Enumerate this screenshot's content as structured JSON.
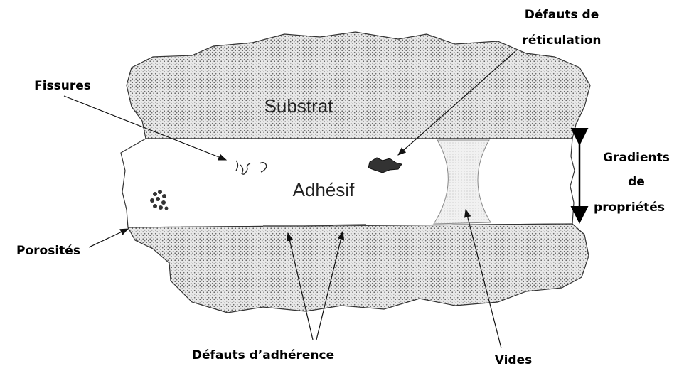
{
  "labels": {
    "reticulation": [
      "Défauts de",
      "réticulation"
    ],
    "fissures": "Fissures",
    "substrat": "Substrat",
    "adhesif": "Adhésif",
    "gradients": [
      "Gradients",
      "de",
      "propriétés"
    ],
    "porosites": "Porosités",
    "adherence": "Défauts d’adhérence",
    "vides": "Vides"
  }
}
